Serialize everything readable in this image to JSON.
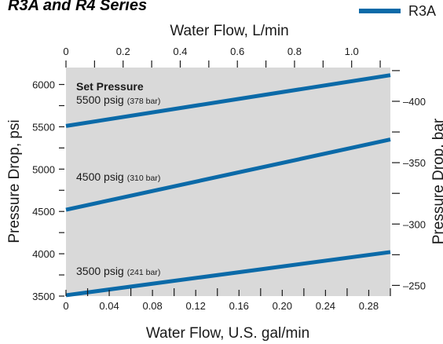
{
  "chart_data": {
    "type": "line",
    "title": "R3A and R4 Series",
    "xlabel": "Water Flow, U.S. gal/min",
    "ylabel": "Pressure Drop, psi",
    "x2label": "Water Flow, L/min",
    "y2label": "Pressure Drop, bar",
    "xlim": [
      0,
      0.3
    ],
    "ylim": [
      3500,
      6200
    ],
    "x2lim": [
      0,
      1.1356
    ],
    "y2lim": [
      241.3,
      427.5
    ],
    "x_ticks": [
      "0",
      "0.04",
      "0.08",
      "0.12",
      "0.16",
      "0.20",
      "0.24",
      "0.28"
    ],
    "y_ticks": [
      "3500",
      "4000",
      "4500",
      "5000",
      "5500",
      "6000"
    ],
    "x2_ticks": [
      "0",
      "0.2",
      "0.4",
      "0.6",
      "0.8",
      "1.0"
    ],
    "y2_ticks": [
      "250",
      "300",
      "350",
      "400"
    ],
    "grid": false,
    "legend": {
      "position": "top-right",
      "entries": [
        "R3A"
      ]
    },
    "plot_bg": "#d9d9d9",
    "series": [
      {
        "name": "R3A",
        "set_psi": "5500 psig",
        "set_bar": "(378 bar)",
        "color": "#0b6aa8",
        "x": [
          0,
          0.3
        ],
        "y": [
          5510,
          6110
        ]
      },
      {
        "name": "R3A",
        "set_psi": "4500 psig",
        "set_bar": "(310 bar)",
        "color": "#0b6aa8",
        "x": [
          0,
          0.3
        ],
        "y": [
          4520,
          5350
        ]
      },
      {
        "name": "R3A",
        "set_psi": "3500 psig",
        "set_bar": "(241 bar)",
        "color": "#0b6aa8",
        "x": [
          0,
          0.3
        ],
        "y": [
          3510,
          4020
        ]
      }
    ],
    "annotation_heading": "Set Pressure"
  }
}
